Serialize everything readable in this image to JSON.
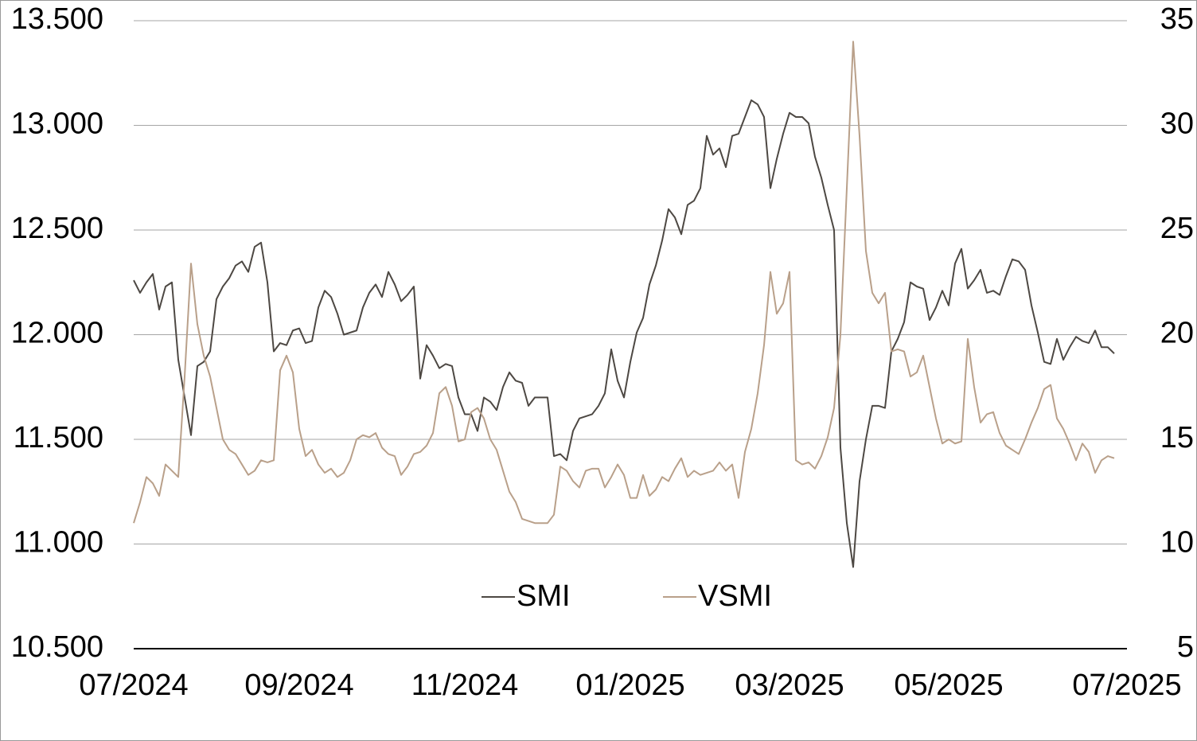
{
  "chart_data": {
    "type": "line",
    "categories": [
      "07/2024",
      null,
      null,
      null,
      null,
      null,
      null,
      null,
      null,
      null,
      null,
      null,
      null,
      null,
      null,
      null,
      null,
      null,
      null,
      null,
      null,
      null,
      null,
      null,
      null,
      null,
      "09/2024",
      null,
      null,
      null,
      null,
      null,
      null,
      null,
      null,
      null,
      null,
      null,
      null,
      null,
      null,
      null,
      null,
      null,
      null,
      null,
      null,
      null,
      null,
      null,
      null,
      null,
      "11/2024",
      null,
      null,
      null,
      null,
      null,
      null,
      null,
      null,
      null,
      null,
      null,
      null,
      null,
      null,
      null,
      null,
      null,
      null,
      null,
      null,
      null,
      null,
      null,
      null,
      null,
      "01/2025",
      null,
      null,
      null,
      null,
      null,
      null,
      null,
      null,
      null,
      null,
      null,
      null,
      null,
      null,
      null,
      null,
      null,
      null,
      null,
      null,
      null,
      null,
      null,
      null,
      "03/2025",
      null,
      null,
      null,
      null,
      null,
      null,
      null,
      null,
      null,
      null,
      null,
      null,
      null,
      null,
      null,
      null,
      null,
      null,
      null,
      null,
      null,
      null,
      null,
      null,
      "05/2025",
      null,
      null,
      null,
      null,
      null,
      null,
      null,
      null,
      null,
      null,
      null,
      null,
      null,
      null,
      null,
      null,
      null,
      null,
      null,
      null,
      null,
      null,
      null,
      null,
      null,
      null,
      null,
      "07/2025"
    ],
    "series": [
      {
        "name": "SMI",
        "color": "#4d4843",
        "axis": "y",
        "values": [
          12260,
          12200,
          12250,
          12290,
          12120,
          12230,
          12250,
          11880,
          11700,
          11520,
          11850,
          11870,
          11920,
          12170,
          12230,
          12270,
          12330,
          12350,
          12300,
          12420,
          12440,
          12250,
          11920,
          11960,
          11950,
          12020,
          12030,
          11960,
          11970,
          12130,
          12210,
          12180,
          12100,
          12000,
          12010,
          12020,
          12130,
          12200,
          12240,
          12180,
          12300,
          12240,
          12160,
          12190,
          12230,
          11790,
          11950,
          11900,
          11840,
          11860,
          11850,
          11700,
          11620,
          11620,
          11540,
          11700,
          11680,
          11640,
          11750,
          11820,
          11780,
          11770,
          11660,
          11700,
          11700,
          11700,
          11420,
          11430,
          11400,
          11540,
          11600,
          11610,
          11620,
          11660,
          11720,
          11930,
          11780,
          11700,
          11870,
          12010,
          12080,
          12240,
          12330,
          12450,
          12600,
          12560,
          12480,
          12620,
          12640,
          12700,
          12950,
          12860,
          12890,
          12800,
          12950,
          12960,
          13040,
          13120,
          13100,
          13040,
          12700,
          12840,
          12960,
          13060,
          13040,
          13040,
          13010,
          12850,
          12750,
          12620,
          12500,
          11460,
          11100,
          10890,
          11300,
          11500,
          11660,
          11660,
          11650,
          11920,
          11980,
          12060,
          12250,
          12230,
          12220,
          12070,
          12130,
          12210,
          12140,
          12340,
          12410,
          12220,
          12260,
          12310,
          12200,
          12210,
          12190,
          12280,
          12360,
          12350,
          12310,
          12140,
          12010,
          11870,
          11860,
          11980,
          11880,
          11940,
          11990,
          11970,
          11960,
          12020,
          11940,
          11940,
          11910,
          null,
          null
        ]
      },
      {
        "name": "VSMI",
        "color": "#b9a08a",
        "axis": "y2",
        "values": [
          11.0,
          12.0,
          13.2,
          12.9,
          12.3,
          13.8,
          13.5,
          13.2,
          18.0,
          23.4,
          20.5,
          19.0,
          18.0,
          16.5,
          15.0,
          14.5,
          14.3,
          13.8,
          13.3,
          13.5,
          14.0,
          13.9,
          14.0,
          18.3,
          19.0,
          18.2,
          15.5,
          14.2,
          14.5,
          13.8,
          13.4,
          13.6,
          13.2,
          13.4,
          14.0,
          15.0,
          15.2,
          15.1,
          15.3,
          14.6,
          14.3,
          14.2,
          13.3,
          13.7,
          14.3,
          14.4,
          14.7,
          15.3,
          17.2,
          17.5,
          16.6,
          14.9,
          15.0,
          16.3,
          16.5,
          16.0,
          15.0,
          14.5,
          13.5,
          12.5,
          12.0,
          11.2,
          11.1,
          11.0,
          11.0,
          11.0,
          11.4,
          13.7,
          13.5,
          13.0,
          12.7,
          13.5,
          13.6,
          13.6,
          12.7,
          13.2,
          13.8,
          13.3,
          12.2,
          12.2,
          13.3,
          12.3,
          12.6,
          13.2,
          13.0,
          13.6,
          14.1,
          13.2,
          13.5,
          13.3,
          13.4,
          13.5,
          13.9,
          13.5,
          13.8,
          12.2,
          14.4,
          15.5,
          17.2,
          19.5,
          23.0,
          21.0,
          21.5,
          23.0,
          14.0,
          13.8,
          13.9,
          13.6,
          14.2,
          15.1,
          16.5,
          20.0,
          27.0,
          34.0,
          29.5,
          24.0,
          22.0,
          21.5,
          22.0,
          19.2,
          19.3,
          19.2,
          18.0,
          18.2,
          19.0,
          17.5,
          16.0,
          14.8,
          15.0,
          14.8,
          14.9,
          19.8,
          17.5,
          15.8,
          16.2,
          16.3,
          15.3,
          14.7,
          14.5,
          14.3,
          15.0,
          15.8,
          16.5,
          17.4,
          17.6,
          16.0,
          15.5,
          14.8,
          14.0,
          14.8,
          14.4,
          13.4,
          14.0,
          14.2,
          14.1,
          null,
          null
        ]
      }
    ],
    "ylim": [
      10500,
      13500
    ],
    "yticks": [
      {
        "value": 10500,
        "label": "10.500"
      },
      {
        "value": 11000,
        "label": "11.000"
      },
      {
        "value": 11500,
        "label": "11.500"
      },
      {
        "value": 12000,
        "label": "12.000"
      },
      {
        "value": 12500,
        "label": "12.500"
      },
      {
        "value": 13000,
        "label": "13.000"
      },
      {
        "value": 13500,
        "label": "13.500"
      }
    ],
    "y2lim": [
      5,
      35
    ],
    "y2ticks": [
      5,
      10,
      15,
      20,
      25,
      30,
      35
    ],
    "grid": true,
    "legend": "bottom"
  }
}
